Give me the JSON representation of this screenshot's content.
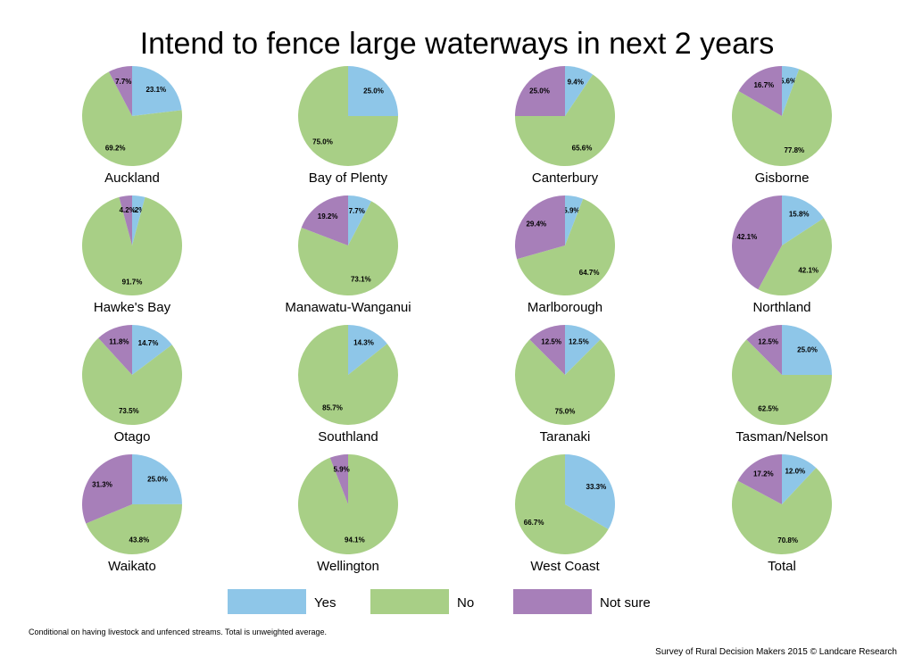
{
  "chart_data": {
    "type": "pie",
    "title": "Intend to fence large waterways in next 2 years",
    "series_names": [
      "Yes",
      "No",
      "Not sure"
    ],
    "colors": [
      "#8ec6e8",
      "#a8cf86",
      "#a77fb9"
    ],
    "pies": [
      {
        "name": "Auckland",
        "values": [
          23.1,
          69.2,
          7.7
        ],
        "labels": [
          "23.1%",
          "69.2%",
          "7.7%"
        ]
      },
      {
        "name": "Bay of Plenty",
        "values": [
          25.0,
          75.0,
          0
        ],
        "labels": [
          "25.0%",
          "75.0%",
          ""
        ]
      },
      {
        "name": "Canterbury",
        "values": [
          9.4,
          65.6,
          25.0
        ],
        "labels": [
          "9.4%",
          "65.6%",
          "25.0%"
        ]
      },
      {
        "name": "Gisborne",
        "values": [
          5.6,
          77.8,
          16.7
        ],
        "labels": [
          "5.6%",
          "77.8%",
          "16.7%"
        ]
      },
      {
        "name": "Hawke's Bay",
        "values": [
          4.2,
          91.7,
          4.2
        ],
        "labels": [
          "4.2%",
          "91.7%",
          "4.2%"
        ]
      },
      {
        "name": "Manawatu-Wanganui",
        "values": [
          7.7,
          73.1,
          19.2
        ],
        "labels": [
          "7.7%",
          "73.1%",
          "19.2%"
        ]
      },
      {
        "name": "Marlborough",
        "values": [
          5.9,
          64.7,
          29.4
        ],
        "labels": [
          "5.9%",
          "64.7%",
          "29.4%"
        ]
      },
      {
        "name": "Northland",
        "values": [
          15.8,
          42.1,
          42.1
        ],
        "labels": [
          "15.8%",
          "42.1%",
          "42.1%"
        ]
      },
      {
        "name": "Otago",
        "values": [
          14.7,
          73.5,
          11.8
        ],
        "labels": [
          "14.7%",
          "73.5%",
          "11.8%"
        ]
      },
      {
        "name": "Southland",
        "values": [
          14.3,
          85.7,
          0
        ],
        "labels": [
          "14.3%",
          "85.7%",
          ""
        ]
      },
      {
        "name": "Taranaki",
        "values": [
          12.5,
          75.0,
          12.5
        ],
        "labels": [
          "12.5%",
          "75.0%",
          "12.5%"
        ]
      },
      {
        "name": "Tasman/Nelson",
        "values": [
          25.0,
          62.5,
          12.5
        ],
        "labels": [
          "25.0%",
          "62.5%",
          "12.5%"
        ]
      },
      {
        "name": "Waikato",
        "values": [
          25.0,
          43.8,
          31.3
        ],
        "labels": [
          "25.0%",
          "43.8%",
          "31.3%"
        ]
      },
      {
        "name": "Wellington",
        "values": [
          0,
          94.1,
          5.9
        ],
        "labels": [
          "",
          "94.1%",
          "5.9%"
        ]
      },
      {
        "name": "West Coast",
        "values": [
          33.3,
          66.7,
          0
        ],
        "labels": [
          "33.3%",
          "66.7%",
          ""
        ]
      },
      {
        "name": "Total",
        "values": [
          12.0,
          70.8,
          17.2
        ],
        "labels": [
          "12.0%",
          "70.8%",
          "17.2%"
        ]
      }
    ],
    "legend_position": "bottom"
  },
  "footnote": "Conditional on having livestock and unfenced streams. Total is unweighted average.",
  "source": "Survey of Rural Decision Makers 2015 © Landcare Research"
}
